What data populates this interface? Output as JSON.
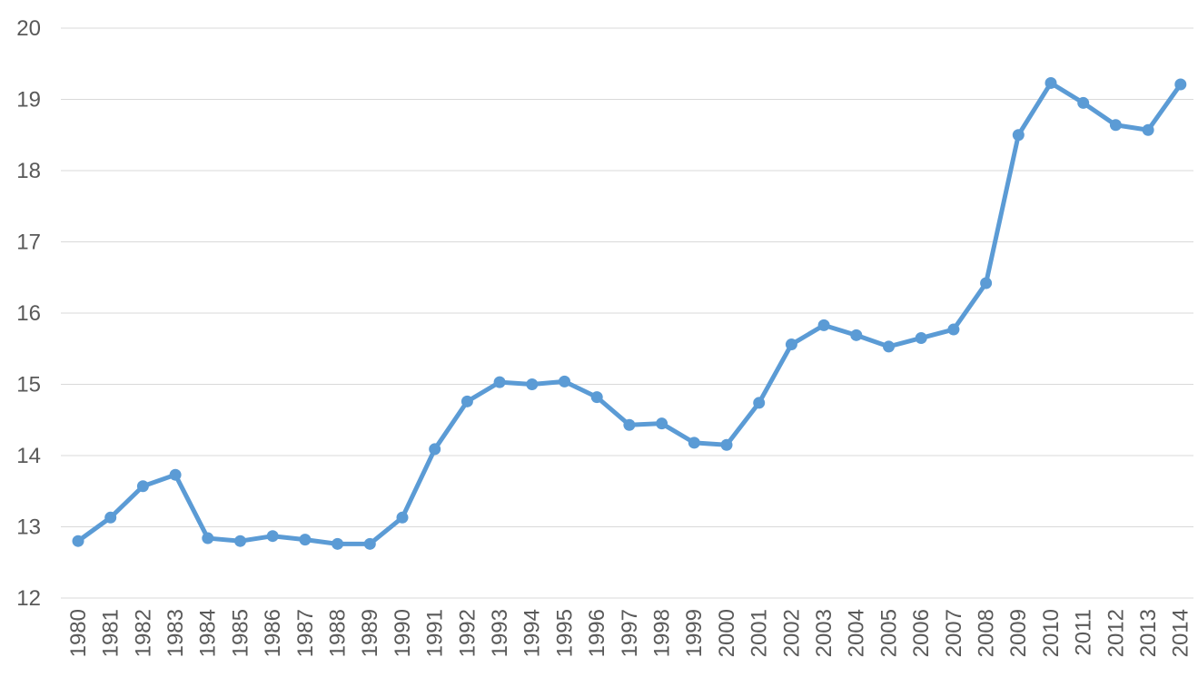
{
  "page": {
    "background_color": "#ffffff"
  },
  "chart_data": {
    "type": "line",
    "title": "",
    "xlabel": "",
    "ylabel": "",
    "x": [
      1980,
      1981,
      1982,
      1983,
      1984,
      1985,
      1986,
      1987,
      1988,
      1989,
      1990,
      1991,
      1992,
      1993,
      1994,
      1995,
      1996,
      1997,
      1998,
      1999,
      2000,
      2001,
      2002,
      2003,
      2004,
      2005,
      2006,
      2007,
      2008,
      2009,
      2010,
      2011,
      2012,
      2013,
      2014
    ],
    "series": [
      {
        "name": "value",
        "values": [
          12.8,
          13.13,
          13.57,
          13.73,
          12.84,
          12.8,
          12.87,
          12.82,
          12.76,
          12.76,
          13.13,
          14.09,
          14.76,
          15.03,
          15.0,
          15.04,
          14.82,
          14.43,
          14.45,
          14.18,
          14.15,
          14.74,
          15.56,
          15.83,
          15.69,
          15.53,
          15.65,
          15.77,
          16.42,
          18.5,
          19.23,
          18.95,
          18.64,
          18.57,
          19.21
        ]
      }
    ],
    "ylim": [
      12,
      20
    ],
    "yticks": [
      12,
      13,
      14,
      15,
      16,
      17,
      18,
      19,
      20
    ],
    "grid": true,
    "legend": false,
    "line_color": "#5b9bd5",
    "marker": "circle",
    "gridline_color": "#d9d9d9",
    "tick_label_color": "#595959"
  }
}
